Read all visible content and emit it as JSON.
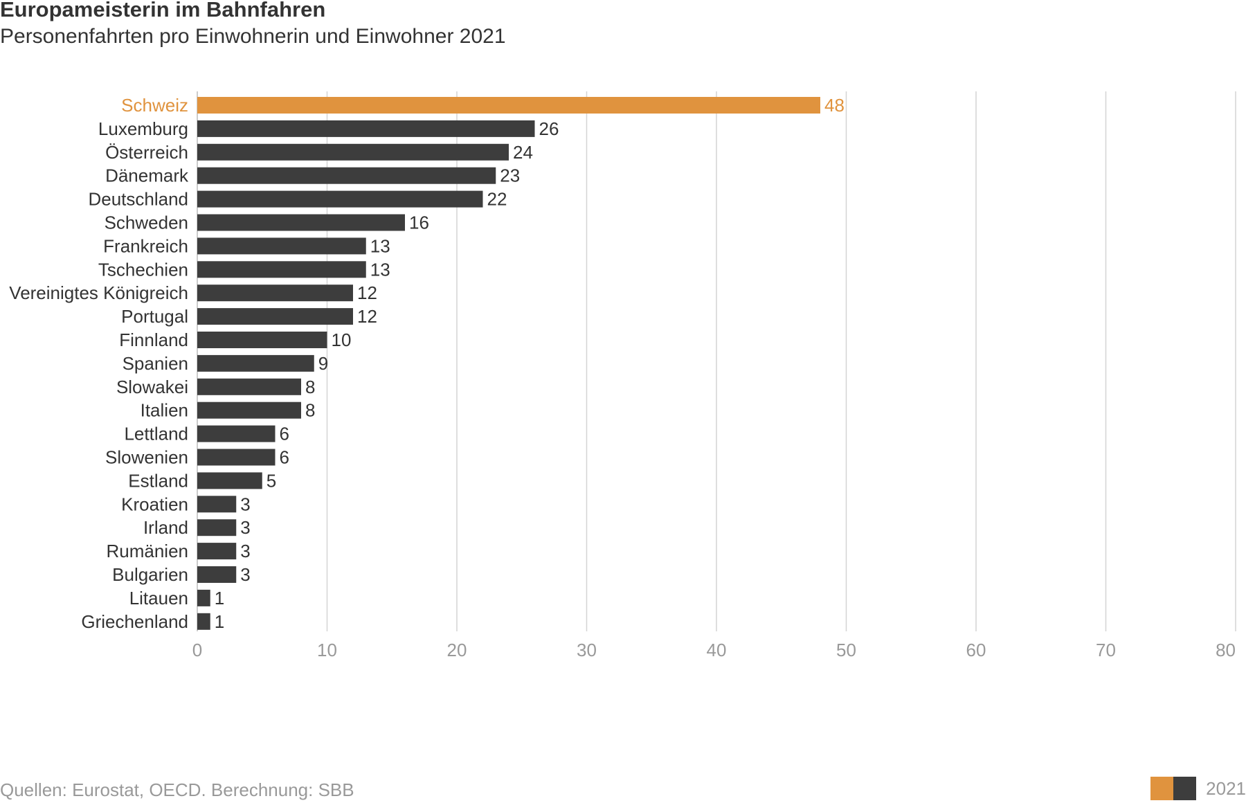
{
  "chart_data": {
    "type": "bar",
    "orientation": "horizontal",
    "title": "Europameisterin im Bahnfahren",
    "subtitle": "Personenfahrten pro Einwohnerin und Einwohner 2021",
    "categories": [
      "Schweiz",
      "Luxemburg",
      "Österreich",
      "Dänemark",
      "Deutschland",
      "Schweden",
      "Frankreich",
      "Tschechien",
      "Vereinigtes Königreich",
      "Portugal",
      "Finnland",
      "Spanien",
      "Slowakei",
      "Italien",
      "Lettland",
      "Slowenien",
      "Estland",
      "Kroatien",
      "Irland",
      "Rumänien",
      "Bulgarien",
      "Litauen",
      "Griechenland"
    ],
    "values": [
      48,
      26,
      24,
      23,
      22,
      16,
      13,
      13,
      12,
      12,
      10,
      9,
      8,
      8,
      6,
      6,
      5,
      3,
      3,
      3,
      3,
      1,
      1
    ],
    "highlight": "Schweiz",
    "xlim": [
      0,
      80
    ],
    "xticks": [
      0,
      10,
      20,
      30,
      40,
      50,
      60,
      70,
      80
    ],
    "grid": "vertical",
    "xlabel": "",
    "ylabel": "",
    "legend": {
      "label": "2021",
      "placement": "bottom-right"
    },
    "colors": {
      "highlight": "#e0933e",
      "default": "#3d3d3d",
      "grid": "#d4d4d4",
      "tick_label": "#999999",
      "category_label": "#333333"
    }
  },
  "source": "Quellen: Eurostat, OECD. Berechnung: SBB"
}
